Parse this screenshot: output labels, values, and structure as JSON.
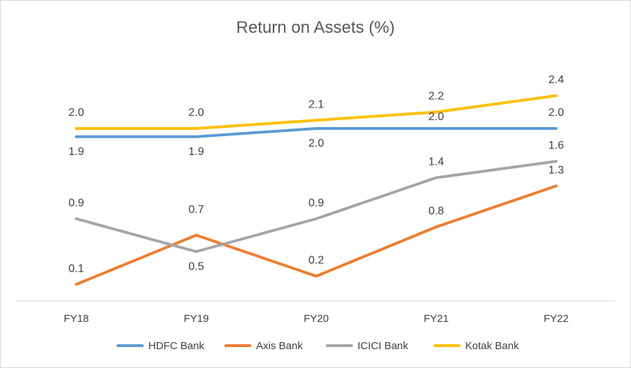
{
  "chart_data": {
    "type": "line",
    "title": "Return on Assets (%)",
    "xlabel": "",
    "ylabel": "",
    "categories": [
      "FY18",
      "FY19",
      "FY20",
      "FY21",
      "FY22"
    ],
    "ylim": [
      0,
      2.8
    ],
    "grid": false,
    "legend": "bottom",
    "series": [
      {
        "name": "HDFC Bank",
        "color": "#5b9bd5",
        "values": [
          1.9,
          1.9,
          2.0,
          2.0,
          2.0
        ],
        "labels": [
          "1.9",
          "1.9",
          "2.0",
          "2.0",
          "2.0"
        ]
      },
      {
        "name": "Axis Bank",
        "color": "#ed7d31",
        "values": [
          0.1,
          0.7,
          0.2,
          0.8,
          1.3
        ],
        "labels": [
          "0.1",
          "0.7",
          "0.2",
          "0.8",
          "1.3"
        ]
      },
      {
        "name": "ICICI Bank",
        "color": "#a5a5a5",
        "values": [
          0.9,
          0.5,
          0.9,
          1.4,
          1.6
        ],
        "labels": [
          "0.9",
          "0.5",
          "0.9",
          "1.4",
          "1.6"
        ]
      },
      {
        "name": "Kotak Bank",
        "color": "#ffc000",
        "values": [
          2.0,
          2.0,
          2.1,
          2.2,
          2.4
        ],
        "labels": [
          "2.0",
          "2.0",
          "2.1",
          "2.2",
          "2.4"
        ]
      }
    ]
  }
}
